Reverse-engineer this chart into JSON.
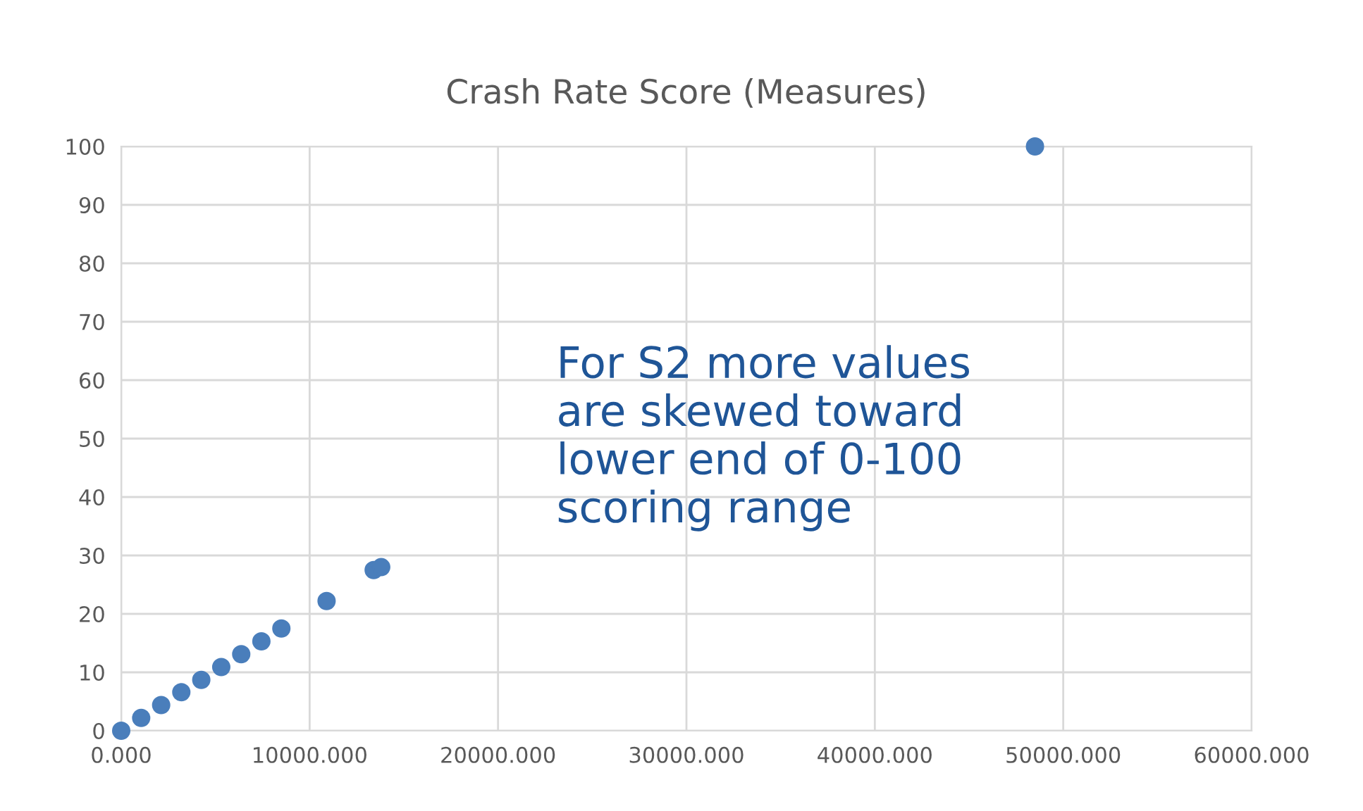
{
  "chart_data": {
    "type": "scatter",
    "title": "Crash Rate Score (Measures)",
    "x": [
      0,
      1060,
      2120,
      3190,
      4250,
      5310,
      6370,
      7440,
      8500,
      10900,
      13400,
      13800,
      48500
    ],
    "series": [
      {
        "color": "#4a7ebb",
        "values": [
          0,
          2.2,
          4.4,
          6.6,
          8.7,
          10.9,
          13.1,
          15.3,
          17.5,
          22.2,
          27.5,
          28.0,
          100
        ]
      }
    ],
    "xlim": [
      0,
      60000
    ],
    "xticks": [
      {
        "value": 0,
        "label": "0.000"
      },
      {
        "value": 10000,
        "label": "10000.000"
      },
      {
        "value": 20000,
        "label": "20000.000"
      },
      {
        "value": 30000,
        "label": "30000.000"
      },
      {
        "value": 40000,
        "label": "40000.000"
      },
      {
        "value": 50000,
        "label": "50000.000"
      },
      {
        "value": 60000,
        "label": "60000.000"
      }
    ],
    "ylim": [
      0,
      100
    ],
    "yticks": [
      0,
      10,
      20,
      30,
      40,
      50,
      60,
      70,
      80,
      90,
      100
    ],
    "grid": true,
    "marker": "circle",
    "annotations": [
      "For S2 more values\nare skewed toward\nlower end of 0-100\nscoring range"
    ]
  }
}
